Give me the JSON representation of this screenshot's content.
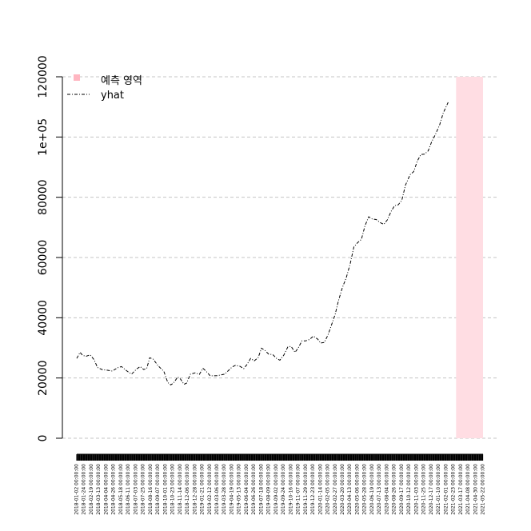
{
  "chart_data": {
    "type": "line",
    "title": "",
    "xlabel": "",
    "ylabel": "",
    "ylim": [
      0,
      120000
    ],
    "y_ticks": [
      {
        "value": 0,
        "label": "0"
      },
      {
        "value": 20000,
        "label": "20000"
      },
      {
        "value": 40000,
        "label": "40000"
      },
      {
        "value": 60000,
        "label": "60000"
      },
      {
        "value": 80000,
        "label": "80000"
      },
      {
        "value": 100000,
        "label": "1e+05"
      },
      {
        "value": 120000,
        "label": "120000"
      }
    ],
    "x_tick_labels": [
      "2018-01-02 00:00:00",
      "2018-01-24 00:00:00",
      "2018-02-19 00:00:00",
      "2018-03-13 00:00:00",
      "2018-04-04 00:00:00",
      "2018-04-26 00:00:00",
      "2018-05-18 00:00:00",
      "2018-06-11 00:00:00",
      "2018-07-03 00:00:00",
      "2018-07-25 00:00:00",
      "2018-08-16 00:00:00",
      "2018-09-07 00:00:00",
      "2018-10-01 00:00:00",
      "2018-10-23 00:00:00",
      "2018-11-14 00:00:00",
      "2018-12-06 00:00:00",
      "2018-12-28 00:00:00",
      "2019-01-21 00:00:00",
      "2019-02-12 00:00:00",
      "2019-03-06 00:00:00",
      "2019-03-28 00:00:00",
      "2019-04-19 00:00:00",
      "2019-05-13 00:00:00",
      "2019-06-04 00:00:00",
      "2019-06-26 00:00:00",
      "2019-07-18 00:00:00",
      "2019-08-09 00:00:00",
      "2019-09-02 00:00:00",
      "2019-09-24 00:00:00",
      "2019-10-16 00:00:00",
      "2019-11-07 00:00:00",
      "2019-11-29 00:00:00",
      "2019-12-23 00:00:00",
      "2020-01-14 00:00:00",
      "2020-02-05 00:00:00",
      "2020-02-27 00:00:00",
      "2020-03-20 00:00:00",
      "2020-04-13 00:00:00",
      "2020-05-06 00:00:00",
      "2020-05-28 00:00:00",
      "2020-06-19 00:00:00",
      "2020-07-13 00:00:00",
      "2020-08-04 00:00:00",
      "2020-08-26 00:00:00",
      "2020-09-17 00:00:00",
      "2020-10-12 00:00:00",
      "2020-11-03 00:00:00",
      "2020-11-25 00:00:00",
      "2020-12-17 00:00:00",
      "2021-01-10 00:00:00",
      "2021-02-01 00:00:00",
      "2021-02-23 00:00:00",
      "2021-03-17 00:00:00",
      "2021-04-08 00:00:00",
      "2021-04-30 00:00:00",
      "2021-05-22 00:00:00"
    ],
    "grid": true,
    "legend_position": "top-left",
    "legend": [
      {
        "label": "예측 영역",
        "symbol": "square",
        "color": "#ffb6c1"
      },
      {
        "label": "yhat",
        "symbol": "dashdot-line",
        "color": "#000000"
      }
    ],
    "forecast_region": {
      "start_date": "2021-03-01 00:00:00",
      "end_date": "2021-05-22 00:00:00",
      "color": "#ffb6c1"
    },
    "series": [
      {
        "name": "yhat",
        "color": "#000000",
        "points": [
          [
            "2018-01-02",
            26500
          ],
          [
            "2018-01-12",
            28500
          ],
          [
            "2018-01-20",
            27500
          ],
          [
            "2018-01-30",
            27200
          ],
          [
            "2018-02-12",
            27700
          ],
          [
            "2018-02-24",
            26000
          ],
          [
            "2018-03-06",
            23500
          ],
          [
            "2018-03-20",
            22800
          ],
          [
            "2018-04-04",
            22600
          ],
          [
            "2018-04-20",
            22300
          ],
          [
            "2018-05-06",
            23400
          ],
          [
            "2018-05-18",
            23800
          ],
          [
            "2018-06-05",
            22200
          ],
          [
            "2018-06-18",
            21300
          ],
          [
            "2018-07-03",
            23000
          ],
          [
            "2018-07-14",
            23800
          ],
          [
            "2018-07-25",
            22800
          ],
          [
            "2018-08-03",
            23200
          ],
          [
            "2018-08-12",
            26700
          ],
          [
            "2018-08-22",
            26300
          ],
          [
            "2018-09-07",
            24000
          ],
          [
            "2018-09-24",
            22200
          ],
          [
            "2018-10-06",
            18500
          ],
          [
            "2018-10-15",
            17700
          ],
          [
            "2018-10-23",
            18300
          ],
          [
            "2018-11-05",
            20300
          ],
          [
            "2018-11-14",
            19600
          ],
          [
            "2018-11-24",
            17900
          ],
          [
            "2018-12-02",
            18300
          ],
          [
            "2018-12-14",
            21300
          ],
          [
            "2018-12-28",
            21700
          ],
          [
            "2019-01-10",
            21200
          ],
          [
            "2019-01-21",
            23200
          ],
          [
            "2019-01-30",
            22300
          ],
          [
            "2019-02-12",
            20700
          ],
          [
            "2019-03-06",
            20800
          ],
          [
            "2019-03-28",
            21300
          ],
          [
            "2019-04-19",
            23600
          ],
          [
            "2019-04-30",
            24200
          ],
          [
            "2019-05-13",
            23900
          ],
          [
            "2019-05-25",
            23100
          ],
          [
            "2019-06-04",
            24500
          ],
          [
            "2019-06-15",
            26500
          ],
          [
            "2019-06-26",
            25700
          ],
          [
            "2019-07-08",
            26800
          ],
          [
            "2019-07-18",
            29900
          ],
          [
            "2019-07-28",
            29200
          ],
          [
            "2019-08-09",
            27900
          ],
          [
            "2019-08-21",
            27800
          ],
          [
            "2019-09-02",
            26500
          ],
          [
            "2019-09-12",
            25900
          ],
          [
            "2019-09-24",
            27600
          ],
          [
            "2019-10-06",
            30300
          ],
          [
            "2019-10-16",
            30500
          ],
          [
            "2019-10-28",
            28500
          ],
          [
            "2019-11-07",
            30000
          ],
          [
            "2019-11-18",
            32300
          ],
          [
            "2019-11-29",
            32300
          ],
          [
            "2019-12-11",
            32800
          ],
          [
            "2019-12-23",
            33900
          ],
          [
            "2020-01-05",
            32900
          ],
          [
            "2020-01-14",
            31600
          ],
          [
            "2020-01-25",
            31800
          ],
          [
            "2020-02-05",
            34200
          ],
          [
            "2020-02-16",
            37600
          ],
          [
            "2020-02-27",
            41000
          ],
          [
            "2020-03-08",
            45600
          ],
          [
            "2020-03-20",
            50000
          ],
          [
            "2020-04-01",
            53300
          ],
          [
            "2020-04-13",
            58000
          ],
          [
            "2020-04-24",
            63500
          ],
          [
            "2020-05-06",
            65000
          ],
          [
            "2020-05-17",
            66000
          ],
          [
            "2020-05-28",
            70500
          ],
          [
            "2020-06-08",
            73500
          ],
          [
            "2020-06-19",
            72800
          ],
          [
            "2020-07-01",
            72600
          ],
          [
            "2020-07-13",
            71600
          ],
          [
            "2020-07-24",
            71000
          ],
          [
            "2020-08-04",
            72500
          ],
          [
            "2020-08-15",
            75200
          ],
          [
            "2020-08-26",
            77200
          ],
          [
            "2020-09-06",
            77500
          ],
          [
            "2020-09-17",
            79000
          ],
          [
            "2020-09-28",
            84000
          ],
          [
            "2020-10-12",
            87500
          ],
          [
            "2020-10-23",
            88500
          ],
          [
            "2020-11-03",
            92000
          ],
          [
            "2020-11-14",
            94200
          ],
          [
            "2020-11-25",
            94300
          ],
          [
            "2020-12-06",
            95400
          ],
          [
            "2020-12-17",
            98500
          ],
          [
            "2020-12-28",
            100800
          ],
          [
            "2021-01-10",
            104000
          ],
          [
            "2021-01-21",
            108000
          ],
          [
            "2021-02-01",
            110600
          ],
          [
            "2021-02-05",
            111500
          ]
        ]
      }
    ]
  }
}
